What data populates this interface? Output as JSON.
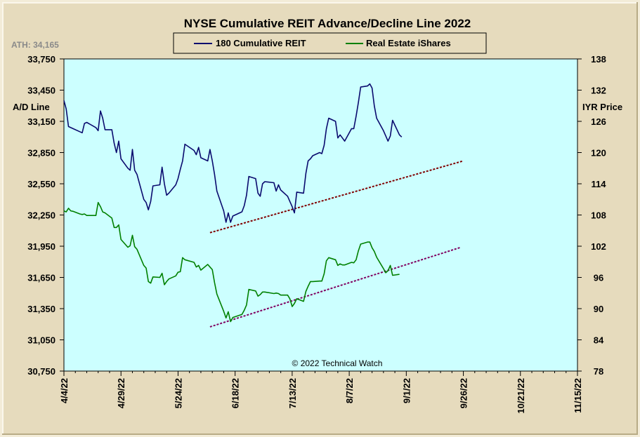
{
  "chart_data": {
    "type": "line",
    "title": "NYSE Cumulative  REIT Advance/Decline Line 2022",
    "ath_label": "ATH: 34,165",
    "copyright": "© 2022 Technical  Watch",
    "background_color": "#ccffff",
    "left_axis": {
      "title": "A/D Line",
      "ylim": [
        30750,
        33750
      ],
      "ticks": [
        30750,
        31050,
        31350,
        31650,
        31950,
        32250,
        32550,
        32850,
        33150,
        33450,
        33750
      ],
      "tick_labels": [
        "30,750",
        "31,050",
        "31,350",
        "31,650",
        "31,950",
        "32,250",
        "32,550",
        "32,850",
        "33,150",
        "33,450",
        "33,750"
      ]
    },
    "right_axis": {
      "title": "IYR Price",
      "ylim": [
        78,
        138
      ],
      "ticks": [
        78,
        84,
        90,
        96,
        102,
        108,
        114,
        120,
        126,
        132,
        138
      ],
      "tick_labels": [
        "78",
        "84",
        "90",
        "96",
        "102",
        "108",
        "114",
        "120",
        "126",
        "132",
        "138"
      ]
    },
    "x_axis": {
      "xlim": [
        "2022-04-04",
        "2022-11-15"
      ],
      "tick_dates": [
        "2022-04-04",
        "2022-04-29",
        "2022-05-24",
        "2022-06-18",
        "2022-07-13",
        "2022-08-07",
        "2022-09-01",
        "2022-09-26",
        "2022-10-21",
        "2022-11-15"
      ],
      "tick_labels": [
        "4/4/22",
        "4/29/22",
        "5/24/22",
        "6/18/22",
        "7/13/22",
        "8/7/22",
        "9/1/22",
        "9/26/22",
        "10/21/22",
        "11/15/22"
      ]
    },
    "legend": {
      "placement": "top-center"
    },
    "series": [
      {
        "name": "180 Cumulative REIT",
        "axis": "left",
        "color": "#0a0a6e",
        "points": [
          [
            "2022-04-04",
            33350
          ],
          [
            "2022-04-05",
            33270
          ],
          [
            "2022-04-06",
            33100
          ],
          [
            "2022-04-07",
            33090
          ],
          [
            "2022-04-08",
            33080
          ],
          [
            "2022-04-11",
            33050
          ],
          [
            "2022-04-12",
            33040
          ],
          [
            "2022-04-13",
            33130
          ],
          [
            "2022-04-14",
            33140
          ],
          [
            "2022-04-18",
            33090
          ],
          [
            "2022-04-19",
            33060
          ],
          [
            "2022-04-20",
            33250
          ],
          [
            "2022-04-21",
            33180
          ],
          [
            "2022-04-22",
            33070
          ],
          [
            "2022-04-25",
            33070
          ],
          [
            "2022-04-26",
            32940
          ],
          [
            "2022-04-27",
            32850
          ],
          [
            "2022-04-28",
            32960
          ],
          [
            "2022-04-29",
            32790
          ],
          [
            "2022-05-02",
            32700
          ],
          [
            "2022-05-03",
            32680
          ],
          [
            "2022-05-04",
            32880
          ],
          [
            "2022-05-05",
            32680
          ],
          [
            "2022-05-06",
            32640
          ],
          [
            "2022-05-09",
            32400
          ],
          [
            "2022-05-10",
            32370
          ],
          [
            "2022-05-11",
            32300
          ],
          [
            "2022-05-12",
            32380
          ],
          [
            "2022-05-13",
            32530
          ],
          [
            "2022-05-16",
            32540
          ],
          [
            "2022-05-17",
            32710
          ],
          [
            "2022-05-18",
            32550
          ],
          [
            "2022-05-19",
            32440
          ],
          [
            "2022-05-20",
            32460
          ],
          [
            "2022-05-23",
            32540
          ],
          [
            "2022-05-24",
            32600
          ],
          [
            "2022-05-25",
            32690
          ],
          [
            "2022-05-26",
            32770
          ],
          [
            "2022-05-27",
            32930
          ],
          [
            "2022-05-31",
            32870
          ],
          [
            "2022-06-01",
            32830
          ],
          [
            "2022-06-02",
            32900
          ],
          [
            "2022-06-03",
            32800
          ],
          [
            "2022-06-06",
            32770
          ],
          [
            "2022-06-07",
            32880
          ],
          [
            "2022-06-08",
            32770
          ],
          [
            "2022-06-09",
            32640
          ],
          [
            "2022-06-10",
            32480
          ],
          [
            "2022-06-13",
            32290
          ],
          [
            "2022-06-14",
            32180
          ],
          [
            "2022-06-15",
            32270
          ],
          [
            "2022-06-16",
            32180
          ],
          [
            "2022-06-17",
            32240
          ],
          [
            "2022-06-21",
            32280
          ],
          [
            "2022-06-22",
            32340
          ],
          [
            "2022-06-23",
            32440
          ],
          [
            "2022-06-24",
            32620
          ],
          [
            "2022-06-27",
            32600
          ],
          [
            "2022-06-28",
            32460
          ],
          [
            "2022-06-29",
            32430
          ],
          [
            "2022-06-30",
            32550
          ],
          [
            "2022-07-01",
            32570
          ],
          [
            "2022-07-05",
            32560
          ],
          [
            "2022-07-06",
            32480
          ],
          [
            "2022-07-07",
            32540
          ],
          [
            "2022-07-08",
            32490
          ],
          [
            "2022-07-11",
            32430
          ],
          [
            "2022-07-12",
            32380
          ],
          [
            "2022-07-13",
            32330
          ],
          [
            "2022-07-14",
            32270
          ],
          [
            "2022-07-15",
            32470
          ],
          [
            "2022-07-18",
            32460
          ],
          [
            "2022-07-19",
            32650
          ],
          [
            "2022-07-20",
            32770
          ],
          [
            "2022-07-21",
            32790
          ],
          [
            "2022-07-22",
            32820
          ],
          [
            "2022-07-25",
            32850
          ],
          [
            "2022-07-26",
            32840
          ],
          [
            "2022-07-27",
            32920
          ],
          [
            "2022-07-28",
            33080
          ],
          [
            "2022-07-29",
            33180
          ],
          [
            "2022-08-01",
            33150
          ],
          [
            "2022-08-02",
            32990
          ],
          [
            "2022-08-03",
            33020
          ],
          [
            "2022-08-04",
            32990
          ],
          [
            "2022-08-05",
            32960
          ],
          [
            "2022-08-08",
            33080
          ],
          [
            "2022-08-09",
            33080
          ],
          [
            "2022-08-10",
            33200
          ],
          [
            "2022-08-11",
            33330
          ],
          [
            "2022-08-12",
            33480
          ],
          [
            "2022-08-15",
            33490
          ],
          [
            "2022-08-16",
            33510
          ],
          [
            "2022-08-17",
            33470
          ],
          [
            "2022-08-18",
            33300
          ],
          [
            "2022-08-19",
            33180
          ],
          [
            "2022-08-22",
            33060
          ],
          [
            "2022-08-23",
            33010
          ],
          [
            "2022-08-24",
            32960
          ],
          [
            "2022-08-25",
            33010
          ],
          [
            "2022-08-26",
            33160
          ],
          [
            "2022-08-29",
            33020
          ],
          [
            "2022-08-30",
            33000
          ]
        ]
      },
      {
        "name": "Real Estate iShares",
        "axis": "right",
        "color": "#008000",
        "points": [
          [
            "2022-04-04",
            108.8
          ],
          [
            "2022-04-05",
            108.6
          ],
          [
            "2022-04-06",
            109.3
          ],
          [
            "2022-04-07",
            108.8
          ],
          [
            "2022-04-08",
            108.7
          ],
          [
            "2022-04-11",
            108.2
          ],
          [
            "2022-04-12",
            108.1
          ],
          [
            "2022-04-13",
            108.2
          ],
          [
            "2022-04-14",
            107.9
          ],
          [
            "2022-04-18",
            107.9
          ],
          [
            "2022-04-19",
            110.4
          ],
          [
            "2022-04-20",
            109.6
          ],
          [
            "2022-04-21",
            108.6
          ],
          [
            "2022-04-22",
            108.4
          ],
          [
            "2022-04-25",
            107.4
          ],
          [
            "2022-04-26",
            105.6
          ],
          [
            "2022-04-27",
            105.6
          ],
          [
            "2022-04-28",
            106.1
          ],
          [
            "2022-04-29",
            103.3
          ],
          [
            "2022-05-02",
            101.8
          ],
          [
            "2022-05-03",
            102.1
          ],
          [
            "2022-05-04",
            104.1
          ],
          [
            "2022-05-05",
            101.9
          ],
          [
            "2022-05-06",
            101.4
          ],
          [
            "2022-05-09",
            98.3
          ],
          [
            "2022-05-10",
            97.8
          ],
          [
            "2022-05-11",
            95.2
          ],
          [
            "2022-05-12",
            94.9
          ],
          [
            "2022-05-13",
            96.1
          ],
          [
            "2022-05-16",
            96.0
          ],
          [
            "2022-05-17",
            96.8
          ],
          [
            "2022-05-18",
            94.6
          ],
          [
            "2022-05-19",
            95.2
          ],
          [
            "2022-05-20",
            95.7
          ],
          [
            "2022-05-23",
            96.3
          ],
          [
            "2022-05-24",
            97.0
          ],
          [
            "2022-05-25",
            97.1
          ],
          [
            "2022-05-26",
            99.8
          ],
          [
            "2022-05-27",
            99.4
          ],
          [
            "2022-05-31",
            98.9
          ],
          [
            "2022-06-01",
            98.0
          ],
          [
            "2022-06-02",
            98.3
          ],
          [
            "2022-06-03",
            97.4
          ],
          [
            "2022-06-06",
            98.5
          ],
          [
            "2022-06-07",
            98.0
          ],
          [
            "2022-06-08",
            97.5
          ],
          [
            "2022-06-09",
            95.0
          ],
          [
            "2022-06-10",
            92.8
          ],
          [
            "2022-06-13",
            89.5
          ],
          [
            "2022-06-14",
            88.2
          ],
          [
            "2022-06-15",
            89.4
          ],
          [
            "2022-06-16",
            87.5
          ],
          [
            "2022-06-17",
            88.3
          ],
          [
            "2022-06-21",
            88.9
          ],
          [
            "2022-06-22",
            89.7
          ],
          [
            "2022-06-23",
            90.7
          ],
          [
            "2022-06-24",
            93.7
          ],
          [
            "2022-06-27",
            93.4
          ],
          [
            "2022-06-28",
            92.4
          ],
          [
            "2022-06-29",
            92.7
          ],
          [
            "2022-06-30",
            93.2
          ],
          [
            "2022-07-01",
            93.2
          ],
          [
            "2022-07-05",
            92.9
          ],
          [
            "2022-07-06",
            93.0
          ],
          [
            "2022-07-07",
            92.9
          ],
          [
            "2022-07-08",
            92.6
          ],
          [
            "2022-07-11",
            92.6
          ],
          [
            "2022-07-12",
            91.9
          ],
          [
            "2022-07-13",
            90.4
          ],
          [
            "2022-07-14",
            91.0
          ],
          [
            "2022-07-15",
            91.9
          ],
          [
            "2022-07-18",
            91.4
          ],
          [
            "2022-07-19",
            93.3
          ],
          [
            "2022-07-20",
            94.3
          ],
          [
            "2022-07-21",
            95.2
          ],
          [
            "2022-07-22",
            95.2
          ],
          [
            "2022-07-25",
            95.3
          ],
          [
            "2022-07-26",
            95.3
          ],
          [
            "2022-07-27",
            96.7
          ],
          [
            "2022-07-28",
            99.2
          ],
          [
            "2022-07-29",
            99.8
          ],
          [
            "2022-08-01",
            99.4
          ],
          [
            "2022-08-02",
            98.3
          ],
          [
            "2022-08-03",
            98.6
          ],
          [
            "2022-08-04",
            98.4
          ],
          [
            "2022-08-05",
            98.4
          ],
          [
            "2022-08-08",
            98.9
          ],
          [
            "2022-08-09",
            98.8
          ],
          [
            "2022-08-10",
            99.4
          ],
          [
            "2022-08-11",
            101.1
          ],
          [
            "2022-08-12",
            102.4
          ],
          [
            "2022-08-15",
            102.8
          ],
          [
            "2022-08-16",
            102.8
          ],
          [
            "2022-08-17",
            101.7
          ],
          [
            "2022-08-18",
            101.0
          ],
          [
            "2022-08-19",
            99.9
          ],
          [
            "2022-08-22",
            97.7
          ],
          [
            "2022-08-23",
            96.9
          ],
          [
            "2022-08-24",
            97.3
          ],
          [
            "2022-08-25",
            98.3
          ],
          [
            "2022-08-26",
            96.4
          ],
          [
            "2022-08-29",
            96.6
          ]
        ]
      }
    ],
    "trendlines": [
      {
        "axis": "left",
        "color": "#800000",
        "start": [
          "2022-06-07",
          32080
        ],
        "end": [
          "2022-09-26",
          32770
        ]
      },
      {
        "axis": "right",
        "color": "#800060",
        "start": [
          "2022-06-07",
          86.5
        ],
        "end": [
          "2022-09-25",
          101.8
        ]
      }
    ]
  }
}
